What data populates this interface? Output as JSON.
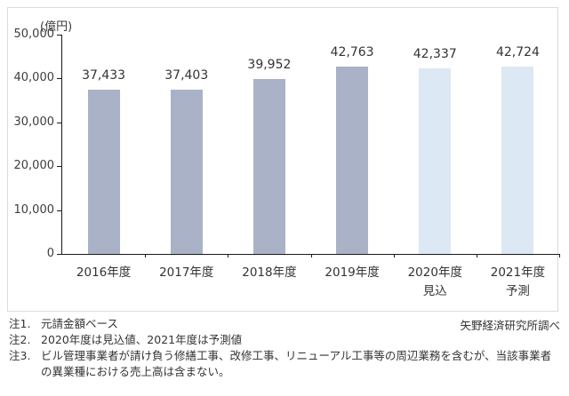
{
  "unit_label": "(億円)",
  "source_label": "矢野経済研究所調べ",
  "notes": [
    {
      "id": "注1.",
      "text": "元請金額ベース"
    },
    {
      "id": "注2.",
      "text": "2020年度は見込値、2021年度は予測値"
    },
    {
      "id": "注3.",
      "text": "ビル管理事業者が請け負う修繕工事、改修工事、リニューアル工事等の周辺業務を含むが、当該事業者の異業種における売上高は含まない。"
    }
  ],
  "chart_data": {
    "type": "bar",
    "title": "",
    "xlabel": "",
    "ylabel": "(億円)",
    "ylim": [
      0,
      50000
    ],
    "yticks": [
      0,
      10000,
      20000,
      30000,
      40000,
      50000
    ],
    "ytick_labels": [
      "0",
      "10,000",
      "20,000",
      "30,000",
      "40,000",
      "50,000"
    ],
    "grid": false,
    "legend": "none",
    "categories": [
      {
        "label": "2016年度",
        "sublabel": ""
      },
      {
        "label": "2017年度",
        "sublabel": ""
      },
      {
        "label": "2018年度",
        "sublabel": ""
      },
      {
        "label": "2019年度",
        "sublabel": ""
      },
      {
        "label": "2020年度",
        "sublabel": "見込"
      },
      {
        "label": "2021年度",
        "sublabel": "予測"
      }
    ],
    "values": [
      37433,
      37403,
      39952,
      42763,
      42337,
      42724
    ],
    "data_labels": [
      "37,433",
      "37,403",
      "39,952",
      "42,763",
      "42,337",
      "42,724"
    ],
    "bar_types": [
      "actual",
      "actual",
      "actual",
      "actual",
      "forecast",
      "forecast"
    ],
    "colors": {
      "actual": "#a9b2c6",
      "forecast": "#dce8f4"
    }
  }
}
